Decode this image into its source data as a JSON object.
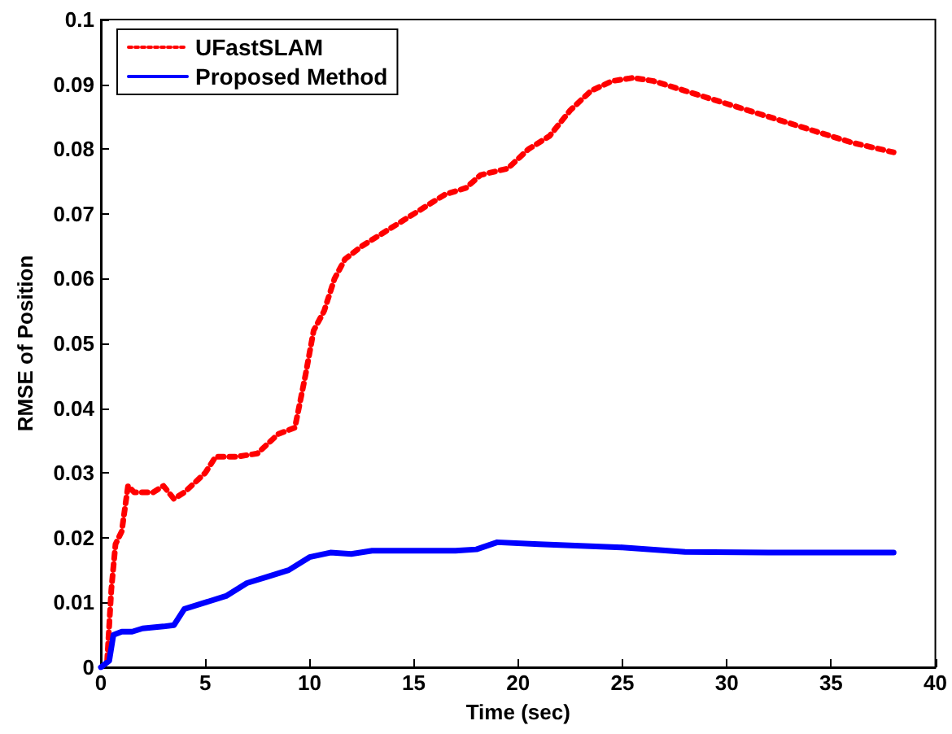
{
  "chart_data": {
    "type": "line",
    "xlabel": "Time (sec)",
    "ylabel": "RMSE of Position",
    "xlim": [
      0,
      40
    ],
    "xticks": [
      0,
      5,
      10,
      15,
      20,
      25,
      30,
      35,
      40
    ],
    "ylim": [
      0,
      0.1
    ],
    "yticks": [
      0,
      0.01,
      0.02,
      0.03,
      0.04,
      0.05,
      0.06,
      0.07,
      0.08,
      0.09,
      0.1
    ],
    "grid": false,
    "legend": "top left",
    "marker": "none",
    "series": [
      {
        "name": "UFastSLAM",
        "color": "#ff0000",
        "line_style": "dotted",
        "x": [
          0.3,
          0.5,
          0.7,
          1.0,
          1.3,
          1.6,
          2,
          2.5,
          3,
          3.5,
          4,
          5,
          5.5,
          6.5,
          7.5,
          8.5,
          9.3,
          9.8,
          10.2,
          10.7,
          11.2,
          11.7,
          12.5,
          13.5,
          14.5,
          15.5,
          16.5,
          17.5,
          18.2,
          19.5,
          20.5,
          21.5,
          22.5,
          23.5,
          24.5,
          25.5,
          26.5,
          28,
          30,
          32,
          34,
          36,
          38
        ],
        "values": [
          0.001,
          0.012,
          0.019,
          0.021,
          0.028,
          0.027,
          0.027,
          0.027,
          0.028,
          0.026,
          0.027,
          0.03,
          0.0325,
          0.0325,
          0.033,
          0.036,
          0.037,
          0.045,
          0.052,
          0.055,
          0.06,
          0.063,
          0.065,
          0.067,
          0.069,
          0.071,
          0.073,
          0.074,
          0.076,
          0.077,
          0.08,
          0.082,
          0.086,
          0.089,
          0.0905,
          0.091,
          0.0905,
          0.089,
          0.087,
          0.085,
          0.083,
          0.081,
          0.0795
        ]
      },
      {
        "name": "Proposed Method",
        "color": "#0000ff",
        "line_style": "solid",
        "x": [
          0,
          0.4,
          0.6,
          1,
          1.5,
          2,
          3,
          3.5,
          4,
          5,
          6,
          7,
          8,
          9,
          10,
          11,
          12,
          13,
          15,
          17,
          18,
          19,
          21,
          25,
          28,
          32,
          35,
          38
        ],
        "values": [
          0,
          0.001,
          0.005,
          0.0055,
          0.0055,
          0.006,
          0.0063,
          0.0065,
          0.009,
          0.01,
          0.011,
          0.013,
          0.014,
          0.015,
          0.017,
          0.0177,
          0.0175,
          0.018,
          0.018,
          0.018,
          0.0182,
          0.0193,
          0.019,
          0.0185,
          0.0178,
          0.0177,
          0.0177,
          0.0177
        ]
      }
    ]
  }
}
